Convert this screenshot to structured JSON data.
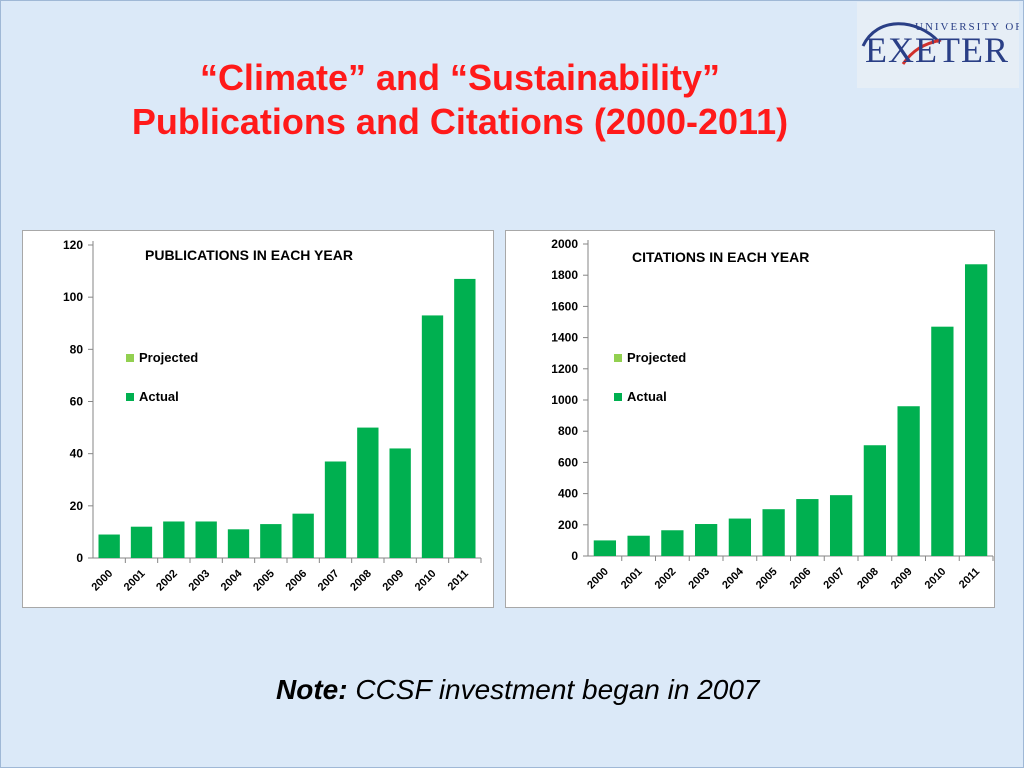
{
  "slide": {
    "title_line1": "“Climate” and “Sustainability”",
    "title_line2": "Publications and Citations (2000-2011)",
    "logo_text_top": "UNIVERSITY OF",
    "logo_text_main": "EXETER",
    "note_label": "Note:",
    "note_text": " CCSF investment began in 2007"
  },
  "colors": {
    "title": "#ff1a1a",
    "actual": "#00b050",
    "projected": "#92d050",
    "logo_blue": "#2a3f86",
    "logo_red": "#d0312d"
  },
  "chart_data": [
    {
      "id": "publications",
      "type": "bar",
      "title": "PUBLICATIONS IN EACH YEAR",
      "categories": [
        "2000",
        "2001",
        "2002",
        "2003",
        "2004",
        "2005",
        "2006",
        "2007",
        "2008",
        "2009",
        "2010",
        "2011"
      ],
      "series": [
        {
          "name": "Actual",
          "values": [
            9,
            12,
            14,
            14,
            11,
            13,
            17,
            37,
            50,
            42,
            93,
            107
          ]
        }
      ],
      "legend": [
        "Projected",
        "Actual"
      ],
      "ylim": [
        0,
        120
      ],
      "yticks": [
        0,
        20,
        40,
        60,
        80,
        100,
        120
      ],
      "grid": false,
      "legend_position": "left-middle"
    },
    {
      "id": "citations",
      "type": "bar",
      "title": "CITATIONS IN EACH YEAR",
      "categories": [
        "2000",
        "2001",
        "2002",
        "2003",
        "2004",
        "2005",
        "2006",
        "2007",
        "2008",
        "2009",
        "2010",
        "2011"
      ],
      "series": [
        {
          "name": "Actual",
          "values": [
            100,
            130,
            165,
            205,
            240,
            300,
            365,
            390,
            710,
            960,
            1470,
            1870
          ]
        }
      ],
      "legend": [
        "Projected",
        "Actual"
      ],
      "ylim": [
        0,
        2000
      ],
      "yticks": [
        0,
        200,
        400,
        600,
        800,
        1000,
        1200,
        1400,
        1600,
        1800,
        2000
      ],
      "grid": false,
      "legend_position": "left-middle"
    }
  ]
}
